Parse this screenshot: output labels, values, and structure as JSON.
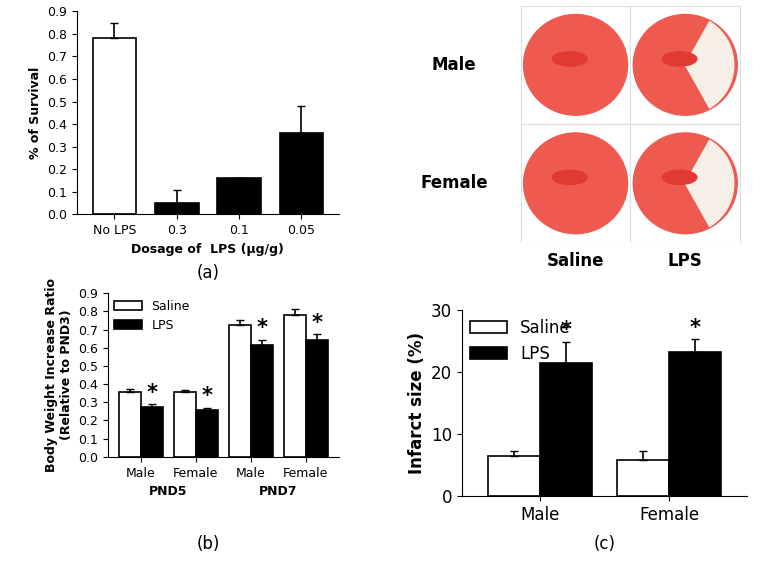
{
  "image_panel": {
    "row_labels": [
      "Male",
      "Female"
    ],
    "column_labels": [
      "Saline",
      "LPS"
    ]
  },
  "chart_data": [
    {
      "type": "bar",
      "caption": "(a)",
      "x_label": "Dosage of  LPS (µg/g)",
      "y_label": "% of Survival",
      "categories": [
        "No LPS",
        "0.3",
        "0.1",
        "0.05"
      ],
      "values": [
        0.78,
        0.05,
        0.16,
        0.36
      ],
      "errors": [
        0.07,
        0.06,
        0.0,
        0.12
      ],
      "colors": [
        "#ffffff",
        "#000000",
        "#000000",
        "#000000"
      ],
      "ylim": [
        0,
        0.9
      ],
      "yticks": [
        {
          "value": 0,
          "label": "0.0"
        },
        0.1,
        0.2,
        0.3,
        0.4,
        0.5,
        0.6,
        0.7,
        0.8,
        0.9
      ]
    },
    {
      "type": "bar",
      "caption": "(b)",
      "y_label": "Body Weight Increase Ratio\n(Relative to PND3)",
      "categories": [
        "Male",
        "Female",
        "Male",
        "Female"
      ],
      "groups": [
        "PND5",
        "PND5",
        "PND7",
        "PND7"
      ],
      "series": [
        {
          "name": "Saline",
          "color": "#ffffff",
          "values": [
            0.355,
            0.355,
            0.725,
            0.78
          ],
          "errors": [
            0.02,
            0.015,
            0.03,
            0.035
          ]
        },
        {
          "name": "LPS",
          "color": "#000000",
          "values": [
            0.275,
            0.26,
            0.615,
            0.645
          ],
          "errors": [
            0.015,
            0.01,
            0.03,
            0.03
          ],
          "significance": [
            "*",
            "*",
            "*",
            "*"
          ]
        }
      ],
      "legend": "upper left",
      "ylim": [
        0,
        0.9
      ],
      "yticks": [
        {
          "value": 0,
          "label": "0.0"
        },
        0.1,
        0.2,
        0.3,
        0.4,
        0.5,
        0.6,
        0.7,
        0.8,
        0.9
      ]
    },
    {
      "type": "bar",
      "caption": "(c)",
      "y_label": "Infarct size (%)",
      "categories": [
        "Male",
        "Female"
      ],
      "series": [
        {
          "name": "Saline",
          "color": "#ffffff",
          "values": [
            6.5,
            5.8
          ],
          "errors": [
            0.8,
            1.5
          ]
        },
        {
          "name": "LPS",
          "color": "#000000",
          "values": [
            21.5,
            23.2
          ],
          "errors": [
            3.4,
            2.1
          ],
          "significance": [
            "*",
            "*"
          ]
        }
      ],
      "legend": "upper left",
      "ylim": [
        0,
        30
      ],
      "yticks": [
        0,
        10,
        20,
        30
      ]
    }
  ]
}
